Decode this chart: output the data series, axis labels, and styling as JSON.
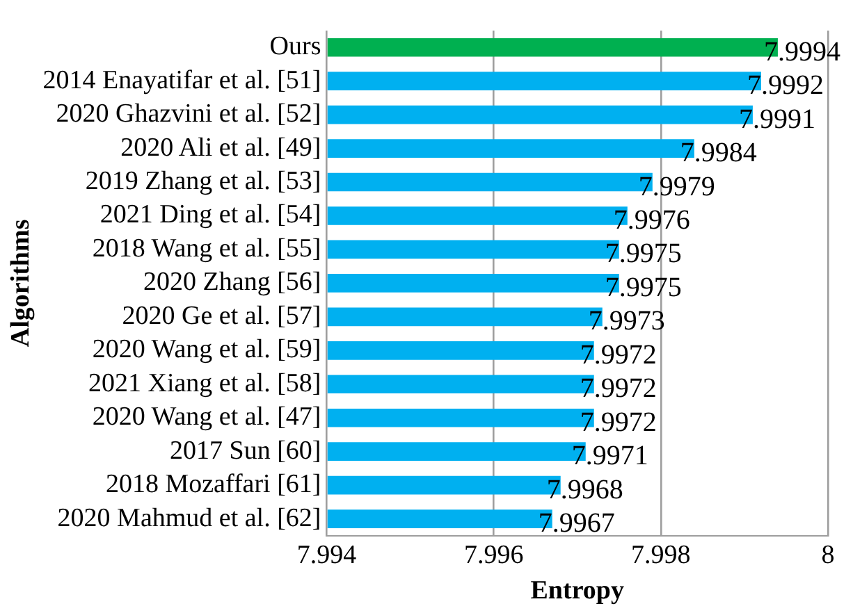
{
  "chart_data": {
    "type": "bar",
    "orientation": "horizontal",
    "xlabel": "Entropy",
    "ylabel": "Algorithms",
    "categories": [
      "Ours",
      "2014 Enayatifar et al. [51]",
      "2020 Ghazvini et al. [52]",
      "2020 Ali et al. [49]",
      "2019 Zhang et al. [53]",
      "2021 Ding et al. [54]",
      "2018 Wang et al. [55]",
      "2020 Zhang [56]",
      "2020 Ge et al. [57]",
      "2020 Wang et al. [59]",
      "2021 Xiang et al. [58]",
      "2020 Wang et al. [47]",
      "2017 Sun [60]",
      "2018 Mozaffari [61]",
      "2020 Mahmud et al. [62]"
    ],
    "values": [
      7.9994,
      7.9992,
      7.9991,
      7.9984,
      7.9979,
      7.9976,
      7.9975,
      7.9975,
      7.9973,
      7.9972,
      7.9972,
      7.9972,
      7.9971,
      7.9968,
      7.9967
    ],
    "colors": [
      "#00b050",
      "#00b0f0",
      "#00b0f0",
      "#00b0f0",
      "#00b0f0",
      "#00b0f0",
      "#00b0f0",
      "#00b0f0",
      "#00b0f0",
      "#00b0f0",
      "#00b0f0",
      "#00b0f0",
      "#00b0f0",
      "#00b0f0",
      "#00b0f0"
    ],
    "xlim": [
      7.994,
      8
    ],
    "xticks": [
      7.994,
      7.996,
      7.998,
      8
    ],
    "grid": "x",
    "data_labels": true,
    "legend": false
  }
}
